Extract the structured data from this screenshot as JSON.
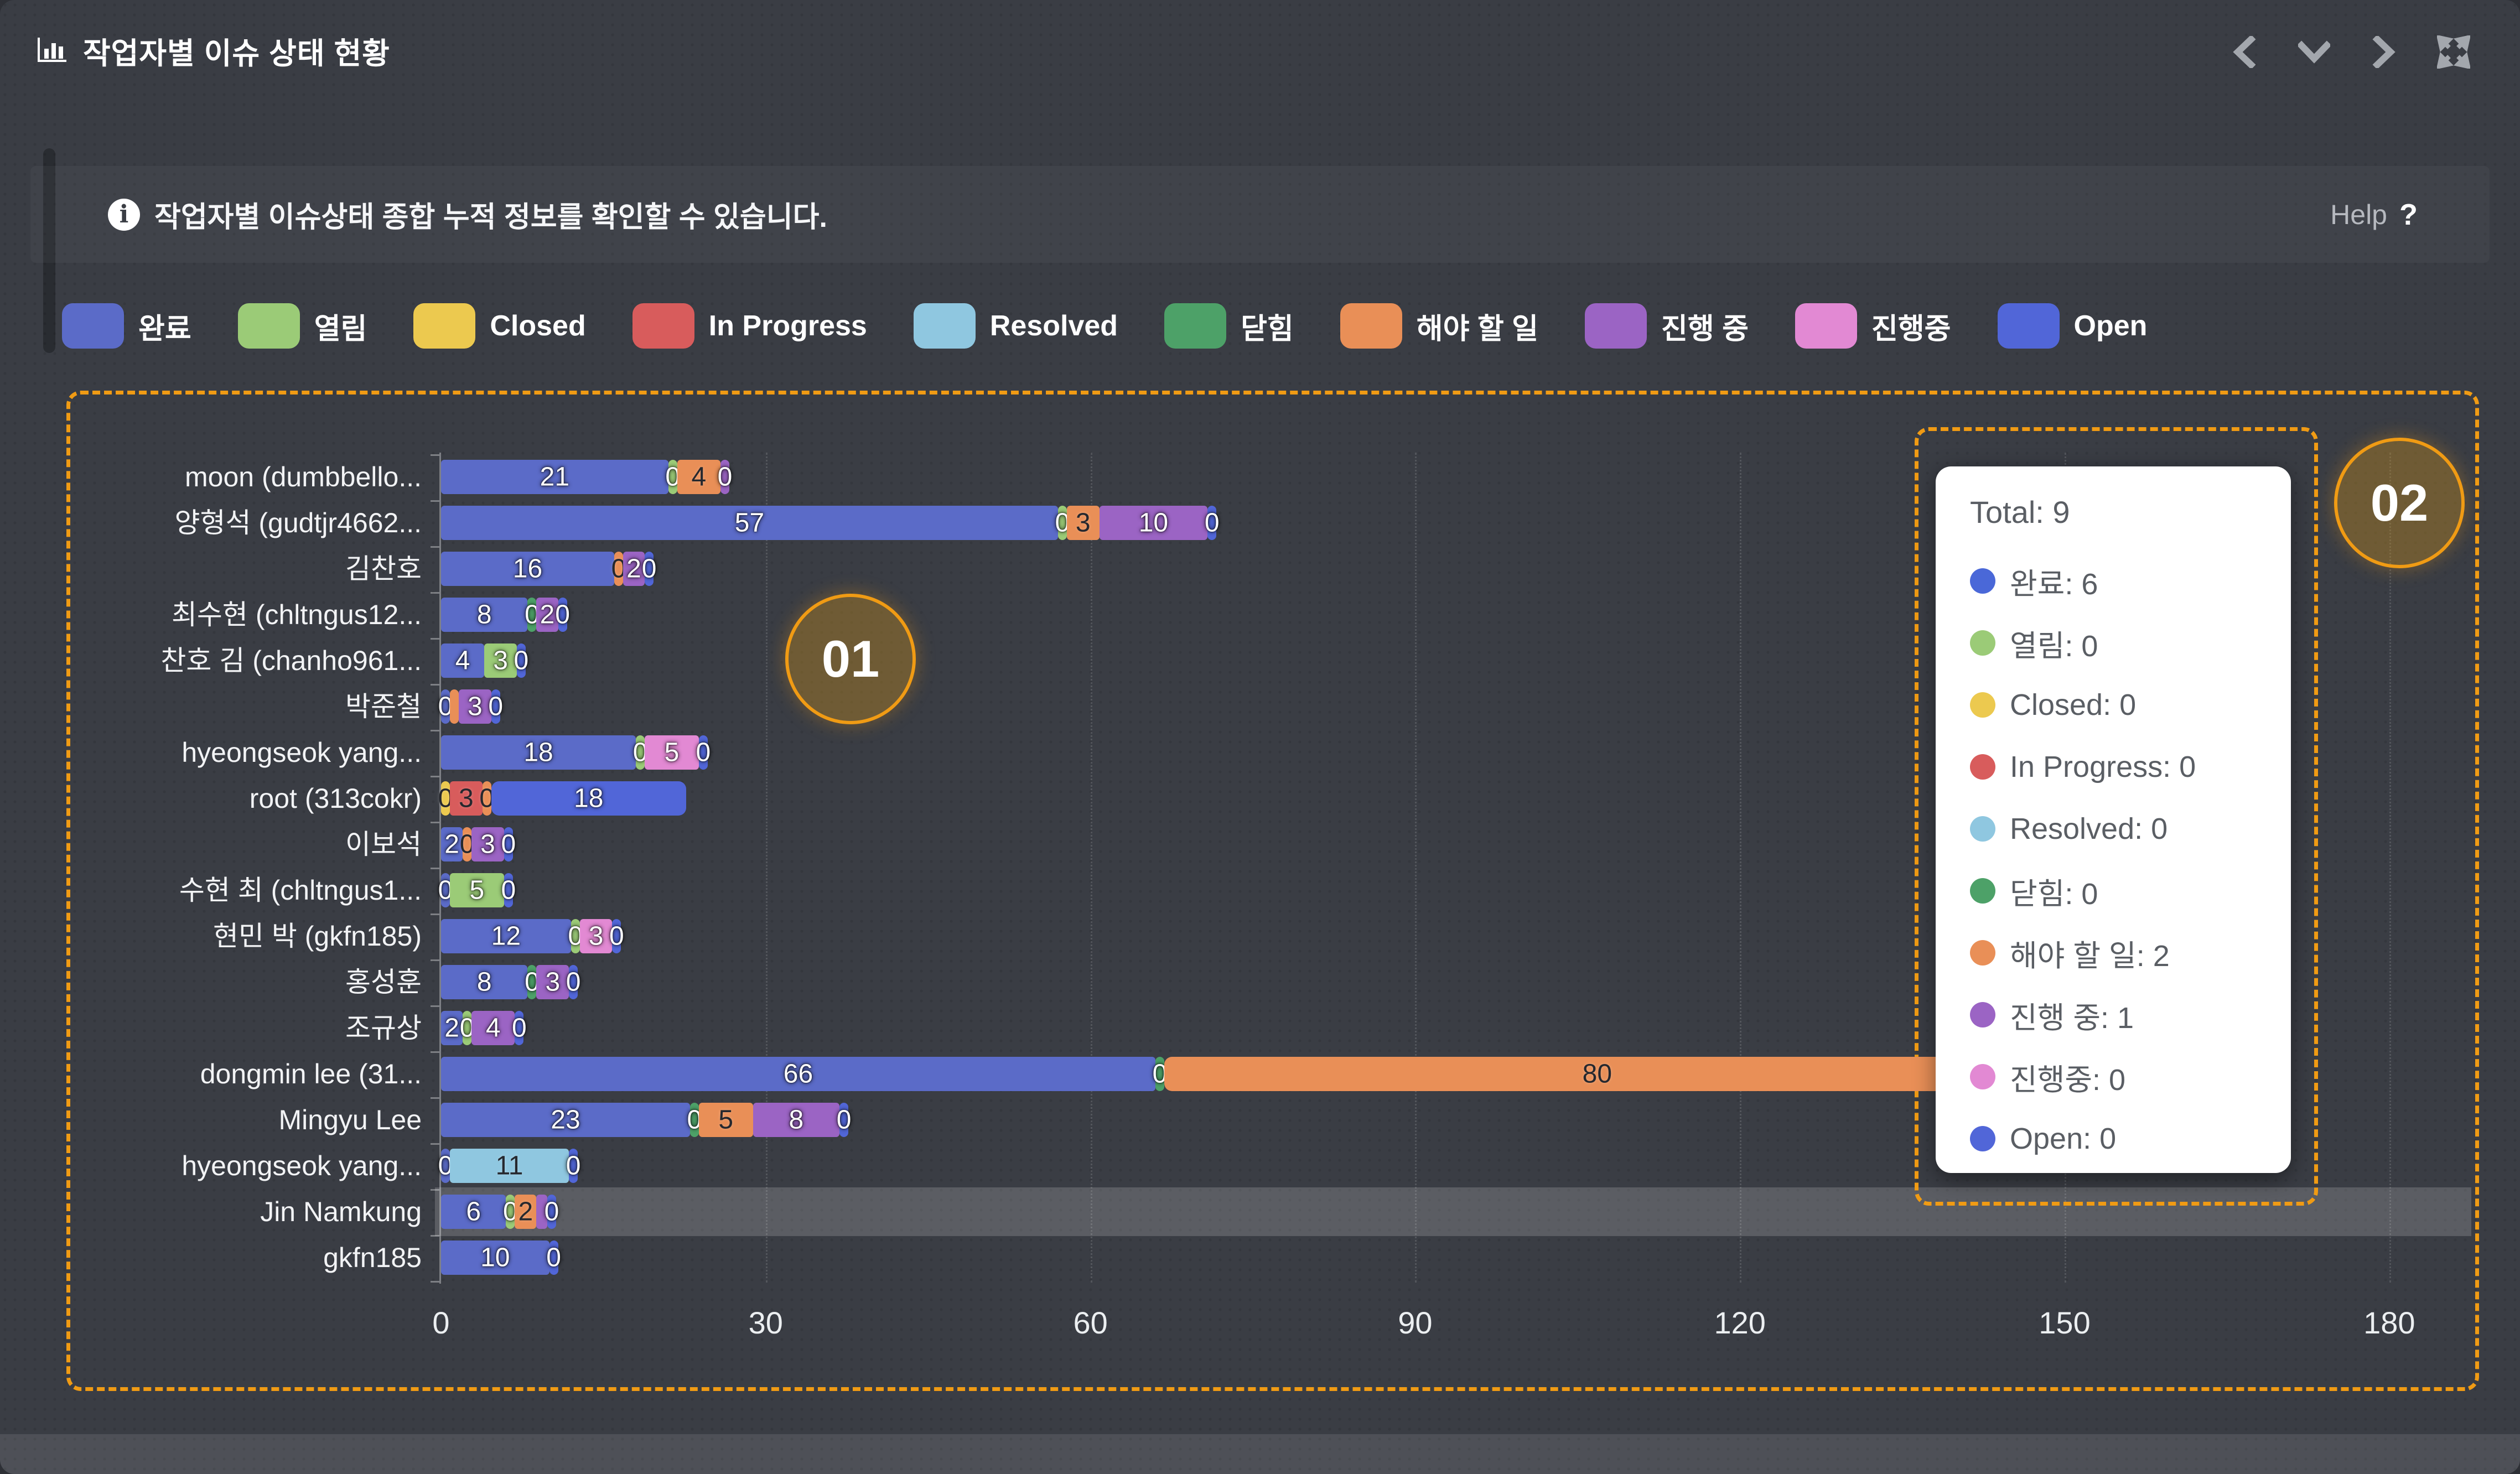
{
  "header": {
    "title": "작업자별 이슈 상태 현황",
    "nav_icons": [
      "chevron-left",
      "chevron-down",
      "chevron-right",
      "expand"
    ]
  },
  "info": {
    "text": "작업자별 이슈상태 종합 누적 정보를 확인할 수 있습니다.",
    "help_label": "Help",
    "help_mark": "?"
  },
  "legend": [
    {
      "label": "완료",
      "color": "#5b6bc8"
    },
    {
      "label": "열림",
      "color": "#9bcb77"
    },
    {
      "label": "Closed",
      "color": "#ecc94f"
    },
    {
      "label": "In Progress",
      "color": "#d85c5c"
    },
    {
      "label": "Resolved",
      "color": "#8fc7e0"
    },
    {
      "label": "닫힘",
      "color": "#4da168"
    },
    {
      "label": "해야 할 일",
      "color": "#e98f57"
    },
    {
      "label": "진행 중",
      "color": "#9b64c4"
    },
    {
      "label": "진행중",
      "color": "#e289d3"
    },
    {
      "label": "Open",
      "color": "#5166d8"
    }
  ],
  "tooltip": {
    "title": "Total: 9",
    "items": [
      {
        "label": "완료",
        "value": "6",
        "color": "#4a68d8"
      },
      {
        "label": "열림",
        "value": "0",
        "color": "#9bcb77"
      },
      {
        "label": "Closed",
        "value": "0",
        "color": "#ecc94f"
      },
      {
        "label": "In Progress",
        "value": "0",
        "color": "#d85c5c"
      },
      {
        "label": "Resolved",
        "value": "0",
        "color": "#8fc7e0"
      },
      {
        "label": "닫힘",
        "value": "0",
        "color": "#4da168"
      },
      {
        "label": "해야 할 일",
        "value": "2",
        "color": "#e98f57"
      },
      {
        "label": "진행 중",
        "value": "1",
        "color": "#9b64c4"
      },
      {
        "label": "진행중",
        "value": "0",
        "color": "#e289d3"
      },
      {
        "label": "Open",
        "value": "0",
        "color": "#5166d8"
      }
    ]
  },
  "annotations": {
    "box1_label": "01",
    "box2_label": "02"
  },
  "chart_data": {
    "type": "bar",
    "orientation": "horizontal",
    "stacked": true,
    "grid": "vertical-dotted",
    "xlim": [
      0,
      180
    ],
    "xticks": [
      "0",
      "30",
      "60",
      "90",
      "120",
      "150",
      "180"
    ],
    "highlighted_category": "Jin Namkung",
    "categories": [
      "moon (dumbbello...",
      "양형석 (gudtjr4662...",
      "김찬호",
      "최수현 (chltngus12...",
      "찬호 김 (chanho961...",
      "박준철",
      "hyeongseok yang...",
      "root (313cokr)",
      "이보석",
      "수현 최 (chltngus1...",
      "현민 박 (gkfn185)",
      "홍성훈",
      "조규상",
      "dongmin lee (31...",
      "Mingyu Lee",
      "hyeongseok yang...",
      "Jin Namkung",
      "gkfn185"
    ],
    "series": [
      {
        "name": "완료",
        "color": "#5b6bc8",
        "values": [
          21,
          57,
          16,
          8,
          4,
          0,
          18,
          0,
          2,
          0,
          12,
          8,
          2,
          66,
          23,
          0,
          6,
          10
        ]
      },
      {
        "name": "열림",
        "color": "#9bcb77",
        "values": [
          0,
          0,
          0,
          0,
          3,
          0,
          0,
          0,
          0,
          5,
          0,
          0,
          0,
          0,
          0,
          0,
          0,
          0
        ]
      },
      {
        "name": "Closed",
        "color": "#ecc94f",
        "values": [
          0,
          0,
          0,
          0,
          0,
          0,
          0,
          0,
          0,
          0,
          0,
          0,
          0,
          0,
          0,
          0,
          0,
          0
        ]
      },
      {
        "name": "In Progress",
        "color": "#d85c5c",
        "values": [
          0,
          0,
          0,
          0,
          0,
          0,
          0,
          3,
          0,
          0,
          0,
          0,
          0,
          0,
          0,
          0,
          0,
          0
        ]
      },
      {
        "name": "Resolved",
        "color": "#8fc7e0",
        "values": [
          0,
          0,
          0,
          0,
          0,
          0,
          0,
          0,
          0,
          0,
          0,
          0,
          0,
          0,
          0,
          11,
          0,
          0
        ]
      },
      {
        "name": "닫힘",
        "color": "#4da168",
        "values": [
          0,
          0,
          0,
          0,
          0,
          0,
          0,
          0,
          0,
          0,
          0,
          0,
          0,
          0,
          0,
          0,
          0,
          0
        ]
      },
      {
        "name": "해야 할 일",
        "color": "#e98f57",
        "values": [
          4,
          3,
          0,
          0,
          0,
          0,
          0,
          0,
          0,
          0,
          0,
          0,
          0,
          80,
          5,
          0,
          2,
          0
        ]
      },
      {
        "name": "진행 중",
        "color": "#9b64c4",
        "values": [
          0,
          10,
          2,
          2,
          0,
          3,
          0,
          0,
          3,
          0,
          0,
          3,
          4,
          0,
          8,
          0,
          1,
          0
        ]
      },
      {
        "name": "진행중",
        "color": "#e289d3",
        "values": [
          0,
          0,
          0,
          0,
          0,
          0,
          5,
          0,
          0,
          0,
          3,
          0,
          0,
          0,
          0,
          0,
          0,
          0
        ]
      },
      {
        "name": "Open",
        "color": "#5166d8",
        "values": [
          0,
          0,
          0,
          0,
          0,
          0,
          0,
          18,
          0,
          0,
          0,
          0,
          0,
          0,
          0,
          0,
          0,
          0
        ]
      }
    ],
    "rows": [
      {
        "segments": [
          {
            "s": 0,
            "v": 21,
            "t": "21"
          },
          {
            "s": 1,
            "v": 0,
            "t": "0"
          },
          {
            "s": 6,
            "v": 4,
            "t": "4"
          },
          {
            "s": 7,
            "v": 0,
            "t": "0"
          }
        ]
      },
      {
        "segments": [
          {
            "s": 0,
            "v": 57,
            "t": "57"
          },
          {
            "s": 1,
            "v": 0,
            "t": "0"
          },
          {
            "s": 6,
            "v": 3,
            "t": "3"
          },
          {
            "s": 7,
            "v": 10,
            "t": "10"
          },
          {
            "s": 9,
            "v": 0,
            "t": "0"
          }
        ]
      },
      {
        "segments": [
          {
            "s": 0,
            "v": 16,
            "t": "16"
          },
          {
            "s": 6,
            "v": 0,
            "t": "0"
          },
          {
            "s": 7,
            "v": 2,
            "t": "2"
          },
          {
            "s": 9,
            "v": 0,
            "t": "0"
          }
        ]
      },
      {
        "segments": [
          {
            "s": 0,
            "v": 8,
            "t": "8"
          },
          {
            "s": 5,
            "v": 0,
            "t": "0"
          },
          {
            "s": 7,
            "v": 2,
            "t": "2"
          },
          {
            "s": 9,
            "v": 0,
            "t": "0"
          }
        ]
      },
      {
        "segments": [
          {
            "s": 0,
            "v": 4,
            "t": "4"
          },
          {
            "s": 1,
            "v": 3,
            "t": "3"
          },
          {
            "s": 9,
            "v": 0,
            "t": "0"
          }
        ]
      },
      {
        "segments": [
          {
            "s": 0,
            "v": 0,
            "t": "0"
          },
          {
            "s": 6,
            "v": 0,
            "t": ""
          },
          {
            "s": 7,
            "v": 3,
            "t": "3"
          },
          {
            "s": 9,
            "v": 0,
            "t": "0"
          }
        ]
      },
      {
        "segments": [
          {
            "s": 0,
            "v": 18,
            "t": "18"
          },
          {
            "s": 1,
            "v": 0,
            "t": "0"
          },
          {
            "s": 8,
            "v": 5,
            "t": "5"
          },
          {
            "s": 9,
            "v": 0,
            "t": "0"
          }
        ]
      },
      {
        "segments": [
          {
            "s": 2,
            "v": 0,
            "t": "0"
          },
          {
            "s": 3,
            "v": 3,
            "t": "3"
          },
          {
            "s": 6,
            "v": 0,
            "t": "0"
          },
          {
            "s": 9,
            "v": 18,
            "t": "18"
          }
        ]
      },
      {
        "segments": [
          {
            "s": 0,
            "v": 2,
            "t": "2"
          },
          {
            "s": 6,
            "v": 0,
            "t": "0"
          },
          {
            "s": 7,
            "v": 3,
            "t": "3"
          },
          {
            "s": 9,
            "v": 0,
            "t": "0"
          }
        ]
      },
      {
        "segments": [
          {
            "s": 0,
            "v": 0,
            "t": "0"
          },
          {
            "s": 1,
            "v": 5,
            "t": "5"
          },
          {
            "s": 9,
            "v": 0,
            "t": "0"
          }
        ]
      },
      {
        "segments": [
          {
            "s": 0,
            "v": 12,
            "t": "12"
          },
          {
            "s": 1,
            "v": 0,
            "t": "0"
          },
          {
            "s": 8,
            "v": 3,
            "t": "3"
          },
          {
            "s": 9,
            "v": 0,
            "t": "0"
          }
        ]
      },
      {
        "segments": [
          {
            "s": 0,
            "v": 8,
            "t": "8"
          },
          {
            "s": 5,
            "v": 0,
            "t": "0"
          },
          {
            "s": 7,
            "v": 3,
            "t": "3"
          },
          {
            "s": 9,
            "v": 0,
            "t": "0"
          }
        ]
      },
      {
        "segments": [
          {
            "s": 0,
            "v": 2,
            "t": "2"
          },
          {
            "s": 1,
            "v": 0,
            "t": "0"
          },
          {
            "s": 7,
            "v": 4,
            "t": "4"
          },
          {
            "s": 9,
            "v": 0,
            "t": "0"
          }
        ]
      },
      {
        "segments": [
          {
            "s": 0,
            "v": 66,
            "t": "66"
          },
          {
            "s": 5,
            "v": 0,
            "t": "0"
          },
          {
            "s": 6,
            "v": 80,
            "t": "80"
          }
        ]
      },
      {
        "segments": [
          {
            "s": 0,
            "v": 23,
            "t": "23"
          },
          {
            "s": 5,
            "v": 0,
            "t": "0"
          },
          {
            "s": 6,
            "v": 5,
            "t": "5"
          },
          {
            "s": 7,
            "v": 8,
            "t": "8"
          },
          {
            "s": 9,
            "v": 0,
            "t": "0"
          }
        ]
      },
      {
        "segments": [
          {
            "s": 0,
            "v": 0,
            "t": "0"
          },
          {
            "s": 4,
            "v": 11,
            "t": "11"
          },
          {
            "s": 9,
            "v": 0,
            "t": "0"
          }
        ]
      },
      {
        "segments": [
          {
            "s": 0,
            "v": 6,
            "t": "6"
          },
          {
            "s": 1,
            "v": 0,
            "t": "0"
          },
          {
            "s": 6,
            "v": 2,
            "t": "2"
          },
          {
            "s": 7,
            "v": 1,
            "t": ""
          },
          {
            "s": 9,
            "v": 0,
            "t": "0"
          }
        ]
      },
      {
        "segments": [
          {
            "s": 0,
            "v": 10,
            "t": "10"
          },
          {
            "s": 9,
            "v": 0,
            "t": "0"
          }
        ]
      }
    ]
  }
}
